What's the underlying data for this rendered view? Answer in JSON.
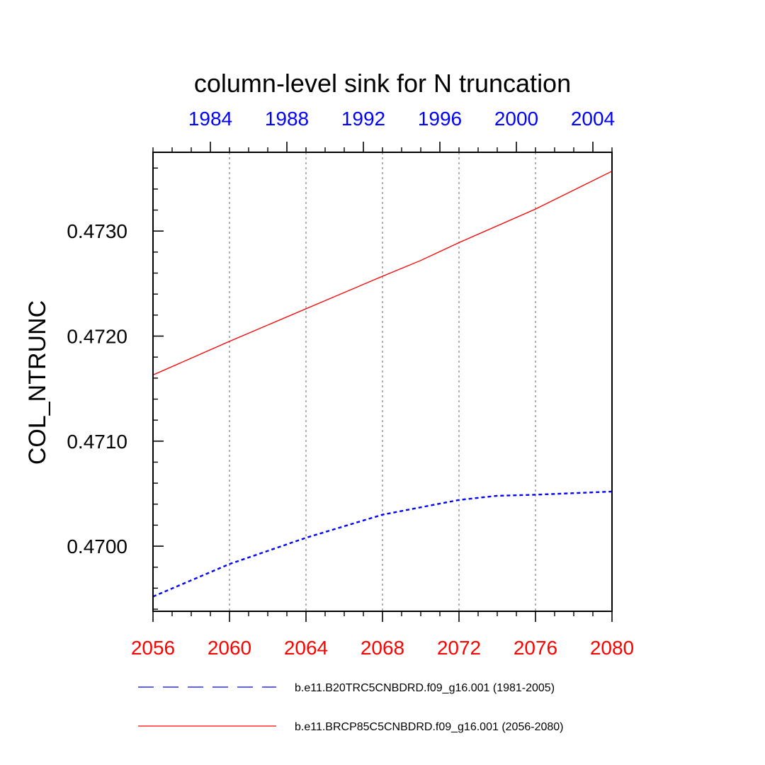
{
  "chart_data": {
    "type": "line",
    "title": "column-level sink for N truncation",
    "ylabel": "COL_NTRUNC",
    "xlabel": "",
    "bottom_axis": {
      "range": [
        2056,
        2080
      ],
      "ticks": [
        "2056",
        "2060",
        "2064",
        "2068",
        "2072",
        "2076",
        "2080"
      ],
      "color": "#ff0000"
    },
    "top_axis": {
      "range": [
        1981,
        2005
      ],
      "ticks": [
        "1984",
        "1988",
        "1992",
        "1996",
        "2000",
        "2004"
      ],
      "color": "#0000ff"
    },
    "y_axis": {
      "range": [
        0.46938,
        0.47375
      ],
      "ticks": [
        "0.4700",
        "0.4710",
        "0.4720",
        "0.4730"
      ]
    },
    "grid": "vertical dotted lines at bottom-axis major ticks",
    "legend_position": "below plot",
    "series": [
      {
        "name": "b.e11.B20TRC5CNBDRD.f09_g16.001 (1981-2005)",
        "axis": "top",
        "color": "#0000ff",
        "style": "dashed",
        "x": [
          1981,
          1985,
          1989,
          1993,
          1997,
          1999,
          2001,
          2005
        ],
        "y": [
          0.46952,
          0.46983,
          0.47008,
          0.4703,
          0.47044,
          0.47048,
          0.47049,
          0.47052
        ]
      },
      {
        "name": "b.e11.BRCP85C5CNBDRD.f09_g16.001 (2056-2080)",
        "axis": "bottom",
        "color": "#ff0000",
        "style": "solid",
        "x": [
          2056,
          2060,
          2064,
          2068,
          2070,
          2072,
          2076,
          2080
        ],
        "y": [
          0.47163,
          0.47195,
          0.47226,
          0.47257,
          0.47272,
          0.47289,
          0.47321,
          0.47357
        ]
      }
    ]
  }
}
